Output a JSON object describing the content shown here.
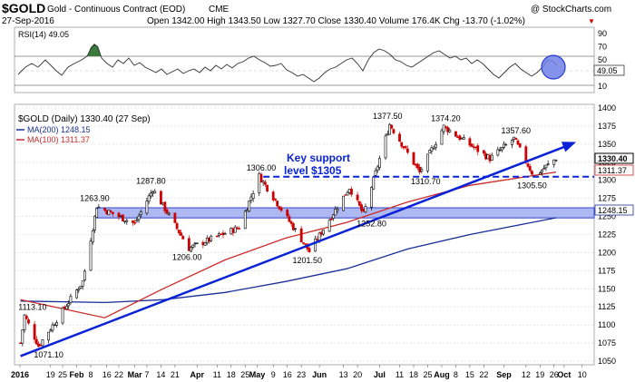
{
  "header": {
    "symbol": "$GOLD",
    "name": "Gold - Continuous Contract (EOD)",
    "exchange": "CME",
    "copyright": "@ StockCharts.com",
    "date": "27-Sep-2016",
    "ohlc_line": "Open 1342.00  High 1343.50  Low 1327.70  Close 1330.40  Volume 176.4K  Chg -13.70 (-1.02%)",
    "chg_arrow": "▼"
  },
  "rsi": {
    "label": "RSI(14) 49.05",
    "value_badge": "49.05",
    "ticks": [
      "90",
      "70",
      "50",
      "30",
      "10"
    ],
    "levels": [
      70,
      30
    ],
    "range": [
      0,
      100
    ]
  },
  "legend": {
    "price_label": "$GOLD (Daily) 1330.40 (27 Sep)",
    "ma200_label": "MA(200) 1248.15",
    "ma100_label": "MA(100) 1311.37",
    "ma200_color": "#1a2f99",
    "ma100_color": "#cc2b2b"
  },
  "annotation": {
    "line1": "Key support",
    "line2": "level $1305"
  },
  "badges": {
    "close": "1330.40",
    "ma100": "1311.37",
    "ma200": "1248.15"
  },
  "colors": {
    "up": "#000000",
    "down": "#cc0000",
    "trend": "#0a23d6",
    "zone_fill": "#9aa6f0",
    "zone_stroke": "#3344cc",
    "rsi_fill": "#3a7a3a"
  },
  "chart_data": {
    "type": "line",
    "title": "$GOLD (Daily) 1330.40 (27 Sep)",
    "ylim": [
      1045,
      1405
    ],
    "y_ticks": [
      1050,
      1075,
      1100,
      1125,
      1150,
      1175,
      1200,
      1225,
      1250,
      1275,
      1300,
      1325,
      1350,
      1375,
      1400
    ],
    "x_tick_labels": [
      "2016",
      "19",
      "25",
      "Feb",
      "8",
      "16",
      "22",
      "Mar",
      "7",
      "14",
      "21",
      "Apr",
      "11",
      "18",
      "25",
      "May",
      "9",
      "16",
      "23",
      "Jun",
      "13",
      "20",
      "Jul",
      "11",
      "18",
      "25",
      "Aug",
      "8",
      "15",
      "22",
      "Sep",
      "12",
      "19",
      "26",
      "Oct",
      "10"
    ],
    "price_points": [
      {
        "date": "2016-01-04",
        "close": 1075
      },
      {
        "date": "2016-01-06",
        "close": 1113.1
      },
      {
        "date": "2016-01-13",
        "close": 1071.1
      },
      {
        "date": "2016-02-04",
        "close": 1160
      },
      {
        "date": "2016-02-11",
        "close": 1263.9
      },
      {
        "date": "2016-03-01",
        "close": 1240
      },
      {
        "date": "2016-03-10",
        "close": 1287.8
      },
      {
        "date": "2016-03-28",
        "close": 1206.0
      },
      {
        "date": "2016-04-22",
        "close": 1235
      },
      {
        "date": "2016-05-02",
        "close": 1306.0
      },
      {
        "date": "2016-05-27",
        "close": 1201.5
      },
      {
        "date": "2016-06-16",
        "close": 1290
      },
      {
        "date": "2016-06-23",
        "close": 1252.8
      },
      {
        "date": "2016-07-06",
        "close": 1377.5
      },
      {
        "date": "2016-07-21",
        "close": 1310.7
      },
      {
        "date": "2016-08-02",
        "close": 1374.2
      },
      {
        "date": "2016-08-25",
        "close": 1330
      },
      {
        "date": "2016-09-06",
        "close": 1357.6
      },
      {
        "date": "2016-09-16",
        "close": 1305.5
      },
      {
        "date": "2016-09-27",
        "close": 1330.4
      }
    ],
    "annotations": [
      {
        "text": "1113.10",
        "value": 1113.1
      },
      {
        "text": "1071.10",
        "value": 1071.1
      },
      {
        "text": "1263.90",
        "value": 1263.9
      },
      {
        "text": "1287.80",
        "value": 1287.8
      },
      {
        "text": "1206.00",
        "value": 1206.0
      },
      {
        "text": "1306.00",
        "value": 1306.0
      },
      {
        "text": "1201.50",
        "value": 1201.5
      },
      {
        "text": "1252.80",
        "value": 1252.8
      },
      {
        "text": "1377.50",
        "value": 1377.5
      },
      {
        "text": "1310.70",
        "value": 1310.7
      },
      {
        "text": "1374.20",
        "value": 1374.2
      },
      {
        "text": "1357.60",
        "value": 1357.6
      },
      {
        "text": "1305.50",
        "value": 1305.5
      }
    ],
    "ma200": [
      {
        "date": "2016-01-04",
        "value": 1133
      },
      {
        "date": "2016-02-15",
        "value": 1131
      },
      {
        "date": "2016-03-15",
        "value": 1135
      },
      {
        "date": "2016-04-15",
        "value": 1145
      },
      {
        "date": "2016-05-15",
        "value": 1160
      },
      {
        "date": "2016-06-15",
        "value": 1178
      },
      {
        "date": "2016-07-15",
        "value": 1205
      },
      {
        "date": "2016-08-15",
        "value": 1225
      },
      {
        "date": "2016-09-27",
        "value": 1248.15
      }
    ],
    "ma100": [
      {
        "date": "2016-01-04",
        "value": 1135
      },
      {
        "date": "2016-02-15",
        "value": 1110
      },
      {
        "date": "2016-03-15",
        "value": 1150
      },
      {
        "date": "2016-04-15",
        "value": 1190
      },
      {
        "date": "2016-05-15",
        "value": 1220
      },
      {
        "date": "2016-06-15",
        "value": 1242
      },
      {
        "date": "2016-07-15",
        "value": 1270
      },
      {
        "date": "2016-08-15",
        "value": 1293
      },
      {
        "date": "2016-09-27",
        "value": 1311.37
      }
    ],
    "support_level": 1305,
    "support_zone": [
      1248,
      1262
    ],
    "trendline": [
      {
        "date": "2016-01-04",
        "value": 1057
      },
      {
        "date": "2016-10-07",
        "value": 1353
      }
    ]
  }
}
